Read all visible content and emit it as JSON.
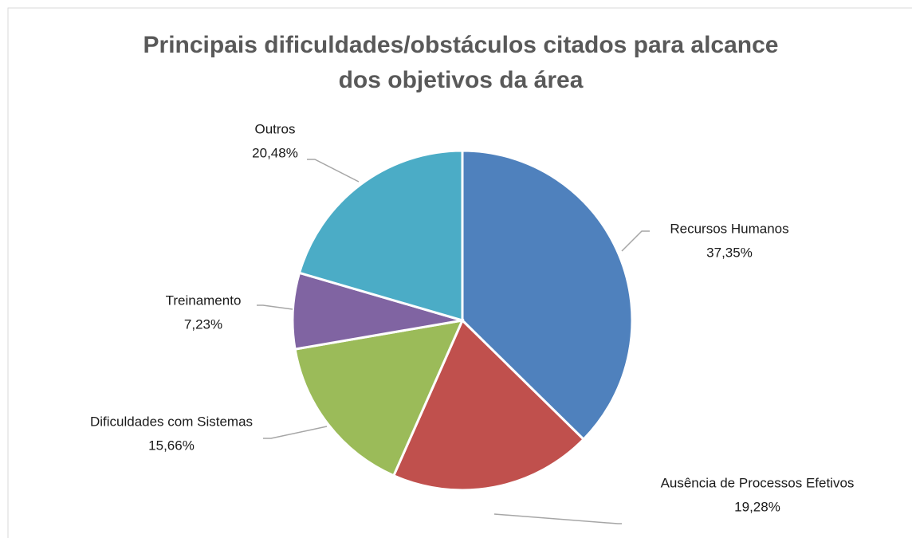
{
  "chart_data": {
    "type": "pie",
    "title": [
      "Principais dificuldades/obstáculos citados para alcance",
      "dos objetivos da área"
    ],
    "categories": [
      "Recursos Humanos",
      "Ausência de Processos Efetivos",
      "Dificuldades com Sistemas",
      "Treinamento",
      "Outros"
    ],
    "values": [
      37.35,
      19.28,
      15.66,
      7.23,
      20.48
    ],
    "value_labels": [
      "37,35%",
      "19,28%",
      "15,66%",
      "7,23%",
      "20,48%"
    ],
    "colors": [
      "#4f81bd",
      "#c0504d",
      "#9bbb59",
      "#8064a2",
      "#4bacc6"
    ]
  }
}
